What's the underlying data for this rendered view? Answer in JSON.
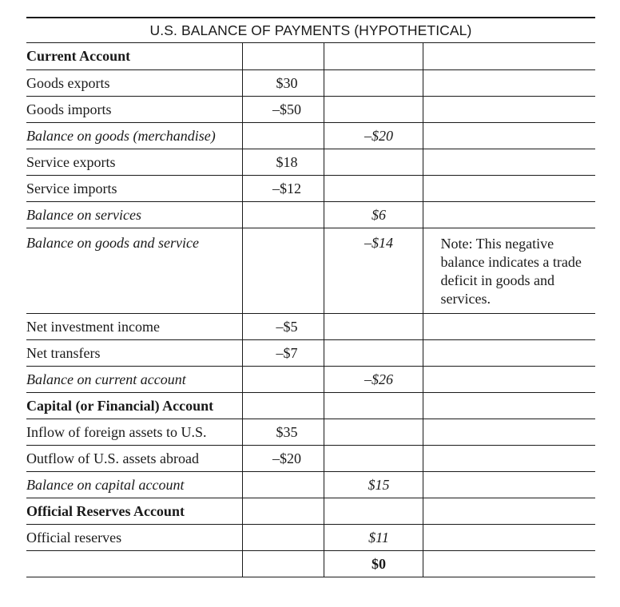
{
  "title": "U.S. BALANCE OF PAYMENTS (HYPOTHETICAL)",
  "rows": [
    {
      "label": "Current Account",
      "style": "bold",
      "col2": "",
      "col3": "",
      "note": ""
    },
    {
      "label": "Goods exports",
      "style": "normal",
      "col2": "$30",
      "col3": "",
      "note": ""
    },
    {
      "label": "Goods imports",
      "style": "normal",
      "col2": "–$50",
      "col3": "",
      "note": ""
    },
    {
      "label": "Balance on goods (merchandise)",
      "style": "italic",
      "col2": "",
      "col3": "–$20",
      "note": ""
    },
    {
      "label": "Service exports",
      "style": "normal",
      "col2": "$18",
      "col3": "",
      "note": ""
    },
    {
      "label": "Service imports",
      "style": "normal",
      "col2": "–$12",
      "col3": "",
      "note": ""
    },
    {
      "label": "Balance on services",
      "style": "italic",
      "col2": "",
      "col3": "$6",
      "note": ""
    },
    {
      "label": "Balance on goods and service",
      "style": "italic",
      "col2": "",
      "col3": "–$14",
      "note": "Note: This negative balance indicates a trade deficit in goods and services."
    },
    {
      "label": "Net investment income",
      "style": "normal",
      "col2": "–$5",
      "col3": "",
      "note": ""
    },
    {
      "label": "Net transfers",
      "style": "normal",
      "col2": "–$7",
      "col3": "",
      "note": ""
    },
    {
      "label": "Balance on current account",
      "style": "italic",
      "col2": "",
      "col3": "–$26",
      "note": ""
    },
    {
      "label": "Capital (or Financial) Account",
      "style": "bold",
      "col2": "",
      "col3": "",
      "note": ""
    },
    {
      "label": "Inflow of foreign assets to U.S.",
      "style": "normal",
      "col2": "$35",
      "col3": "",
      "note": ""
    },
    {
      "label": "Outflow of U.S. assets abroad",
      "style": "normal",
      "col2": "–$20",
      "col3": "",
      "note": ""
    },
    {
      "label": "Balance on capital account",
      "style": "italic",
      "col2": "",
      "col3": "$15",
      "note": ""
    },
    {
      "label": "Official Reserves Account",
      "style": "bold",
      "col2": "",
      "col3": "",
      "note": ""
    },
    {
      "label": "Official reserves",
      "style": "normal",
      "col2": "",
      "col3": "$11",
      "note": ""
    },
    {
      "label": "",
      "style": "normal",
      "col2": "",
      "col3": "$0",
      "col3_style": "bold",
      "note": ""
    }
  ]
}
